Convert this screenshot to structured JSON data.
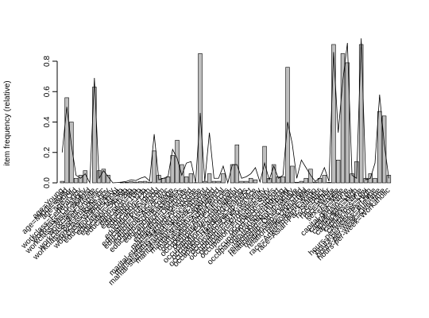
{
  "chart_data": {
    "type": "bar",
    "ylabel": "item frequency (relative)",
    "categories": [
      "age=Young",
      "age=Middle-aged",
      "age=Senior",
      "age=Old",
      "workclass=Federal-gov",
      "workclass=Local-gov",
      "workclass=Never-worked",
      "workclass=Private",
      "workclass=Self-emp-inc",
      "workclass=Self-emp-not-inc",
      "workclass=State-gov",
      "workclass=Without-pay",
      "education=Preschool",
      "education=1st-4th",
      "education=5th-6th",
      "education=7th-8th",
      "education=9th",
      "education=10th",
      "education=11th",
      "education=12th",
      "education=HS-grad",
      "education=Prof-school",
      "education=Assoc-acdm",
      "education=Assoc-voc",
      "education=Some-college",
      "education=Bachelors",
      "education=Masters",
      "education=Doctorate",
      "marital-status=Divorced",
      "marital-status=Married-AF-spouse",
      "marital-status=Married-civ-spouse",
      "marital-status=Married-spouse-absent",
      "marital-status=Never-married",
      "marital-status=Separated",
      "marital-status=Widowed",
      "occupation=Adm-clerical",
      "occupation=Armed-Forces",
      "occupation=Craft-repair",
      "occupation=Exec-managerial",
      "occupation=Farming-fishing",
      "occupation=Handlers-cleaners",
      "occupation=Machine-op-inspct",
      "occupation=Other-service",
      "occupation=Priv-house-serv",
      "occupation=Prof-specialty",
      "occupation=Protective-serv",
      "occupation=Sales",
      "occupation=Tech-support",
      "occupation=Transport-moving",
      "relationship=Husband",
      "relationship=Not-in-family",
      "relationship=Other-relative",
      "relationship=Own-child",
      "relationship=Unmarried",
      "relationship=Wife",
      "race=Amer-Indian-Eskimo",
      "race=Asian-Pac-Islander",
      "race=Black",
      "race=Other",
      "race=White",
      "sex=Female",
      "sex=Male",
      "capital-gain=None",
      "capital-gain=Low",
      "capital-gain=High",
      "capital-loss=None",
      "capital-loss=Low",
      "capital-loss=High",
      "hours-per-week=Part-time",
      "hours-per-week=Full-time",
      "hours-per-week=Over-time",
      "hours-per-week=Workaholic"
    ],
    "values": [
      0.01,
      0.56,
      0.4,
      0.03,
      0.05,
      0.08,
      0,
      0.63,
      0.08,
      0.09,
      0.05,
      0,
      0,
      0.001,
      0.003,
      0.008,
      0.005,
      0.008,
      0.01,
      0.005,
      0.21,
      0.05,
      0.03,
      0.04,
      0.18,
      0.28,
      0.12,
      0.04,
      0.06,
      0.001,
      0.85,
      0.01,
      0.06,
      0.01,
      0.01,
      0.06,
      0,
      0.12,
      0.25,
      0.01,
      0.01,
      0.03,
      0.02,
      0,
      0.24,
      0.03,
      0.12,
      0.04,
      0.04,
      0.76,
      0.11,
      0.004,
      0.01,
      0.03,
      0.09,
      0.005,
      0.03,
      0.05,
      0.003,
      0.91,
      0.15,
      0.85,
      0.79,
      0.06,
      0.14,
      0.91,
      0.03,
      0.06,
      0.03,
      0.47,
      0.44,
      0.05
    ],
    "line_values": [
      0.2,
      0.5,
      0.25,
      0.05,
      0.03,
      0.06,
      0,
      0.69,
      0.03,
      0.08,
      0.04,
      0,
      0.002,
      0.005,
      0.01,
      0.02,
      0.015,
      0.03,
      0.04,
      0.013,
      0.32,
      0.02,
      0.03,
      0.04,
      0.22,
      0.16,
      0.05,
      0.13,
      0.14,
      0.001,
      0.46,
      0.01,
      0.33,
      0.03,
      0.03,
      0.11,
      0,
      0.12,
      0.12,
      0.03,
      0.04,
      0.06,
      0.1,
      0.005,
      0.13,
      0.02,
      0.11,
      0.03,
      0.05,
      0.4,
      0.26,
      0.03,
      0.15,
      0.1,
      0.05,
      0.01,
      0.03,
      0.1,
      0.01,
      0.86,
      0.33,
      0.67,
      0.92,
      0.05,
      0.03,
      0.95,
      0.02,
      0.03,
      0.13,
      0.58,
      0.26,
      0.03
    ],
    "color": "#bebebe",
    "line_color": "#000000",
    "ylim": [
      0,
      0.96
    ],
    "yticks": [
      {
        "value": 0,
        "label": "0.0"
      },
      {
        "value": 0.2,
        "label": "0.2"
      },
      {
        "value": 0.4,
        "label": "0.4"
      },
      {
        "value": 0.6,
        "label": "0.6"
      },
      {
        "value": 0.8,
        "label": "0.8"
      }
    ]
  }
}
